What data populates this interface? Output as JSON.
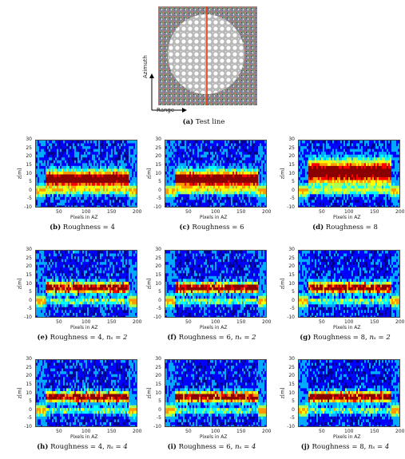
{
  "top_figure": {
    "caption_letter": "(a)",
    "caption_text": "Test line",
    "axis_azimuth": "Azimuth",
    "axis_range": "Range"
  },
  "panels": [
    {
      "letter": "(b)",
      "text": "Roughness = 4",
      "ns": ""
    },
    {
      "letter": "(c)",
      "text": "Roughness = 6",
      "ns": ""
    },
    {
      "letter": "(d)",
      "text": "Roughness = 8",
      "ns": ""
    },
    {
      "letter": "(e)",
      "text": "Roughness = 4, ",
      "ns": "nₛ = 2"
    },
    {
      "letter": "(f)",
      "text": "Roughness = 6, ",
      "ns": "nₛ = 2"
    },
    {
      "letter": "(g)",
      "text": "Roughness = 8, ",
      "ns": "nₛ = 2"
    },
    {
      "letter": "(h)",
      "text": "Roughness = 4, ",
      "ns": "nₛ = 4"
    },
    {
      "letter": "(i)",
      "text": "Roughness = 6, ",
      "ns": "nₛ = 4"
    },
    {
      "letter": "(j)",
      "text": "Roughness = 8, ",
      "ns": "nₛ = 4"
    }
  ],
  "chart_data": {
    "type": "heatmap",
    "xlabel": "Pixels in AZ",
    "ylabel": "z[m]",
    "yticks": [
      "30",
      "25",
      "20",
      "15",
      "10",
      "5",
      "0",
      "-5",
      "-10"
    ],
    "xticks": [
      "50",
      "100",
      "150",
      "200"
    ],
    "ylim": [
      -10,
      30
    ],
    "xlim": [
      0,
      200
    ],
    "colormap": [
      "#00008b",
      "#0000ff",
      "#00aaff",
      "#00ffff",
      "#aaff55",
      "#ffff00",
      "#ff9900",
      "#ff0000",
      "#8b0000"
    ]
  }
}
